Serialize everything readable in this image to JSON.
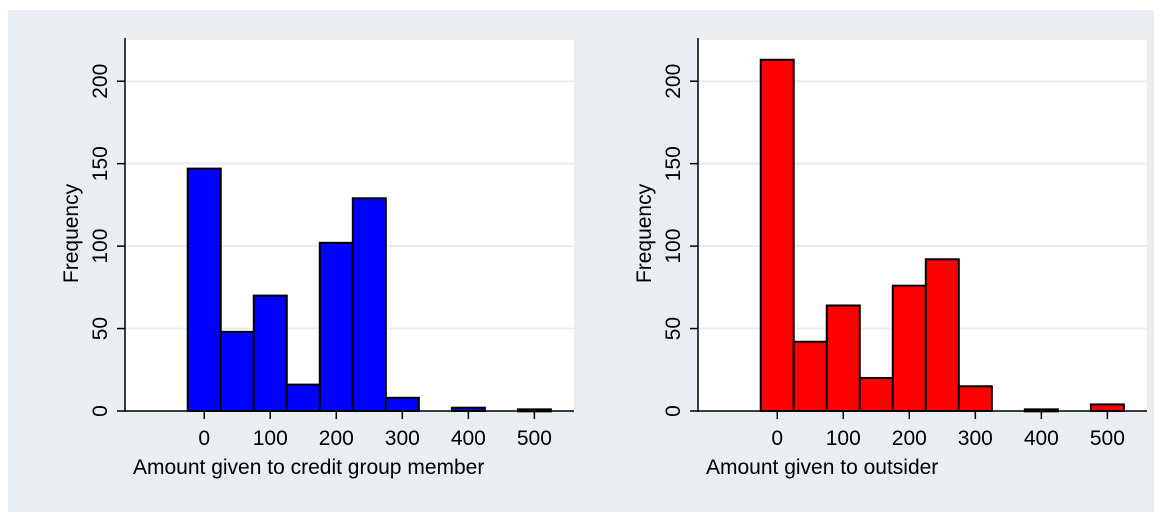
{
  "chart_data": [
    {
      "type": "bar",
      "subtype": "histogram",
      "xlabel": "Amount given to credit group member",
      "ylabel": "Frequency",
      "xticks": [
        0,
        100,
        200,
        300,
        400,
        500
      ],
      "yticks": [
        0,
        50,
        100,
        150,
        200
      ],
      "xlim": [
        -120,
        560
      ],
      "ylim": [
        0,
        225
      ],
      "grid": true,
      "color": "#0000ff",
      "bins": [
        {
          "start": -25,
          "end": 25,
          "value": 147
        },
        {
          "start": 25,
          "end": 75,
          "value": 48
        },
        {
          "start": 75,
          "end": 125,
          "value": 70
        },
        {
          "start": 125,
          "end": 175,
          "value": 16
        },
        {
          "start": 175,
          "end": 225,
          "value": 102
        },
        {
          "start": 225,
          "end": 275,
          "value": 129
        },
        {
          "start": 275,
          "end": 325,
          "value": 8
        },
        {
          "start": 325,
          "end": 375,
          "value": 0
        },
        {
          "start": 375,
          "end": 425,
          "value": 2
        },
        {
          "start": 425,
          "end": 475,
          "value": 0
        },
        {
          "start": 475,
          "end": 525,
          "value": 1
        }
      ]
    },
    {
      "type": "bar",
      "subtype": "histogram",
      "xlabel": "Amount given to outsider",
      "ylabel": "Frequency",
      "xticks": [
        0,
        100,
        200,
        300,
        400,
        500
      ],
      "yticks": [
        0,
        50,
        100,
        150,
        200
      ],
      "xlim": [
        -120,
        560
      ],
      "ylim": [
        0,
        225
      ],
      "grid": true,
      "color": "#ff0000",
      "bins": [
        {
          "start": -25,
          "end": 25,
          "value": 213
        },
        {
          "start": 25,
          "end": 75,
          "value": 42
        },
        {
          "start": 75,
          "end": 125,
          "value": 64
        },
        {
          "start": 125,
          "end": 175,
          "value": 20
        },
        {
          "start": 175,
          "end": 225,
          "value": 76
        },
        {
          "start": 225,
          "end": 275,
          "value": 92
        },
        {
          "start": 275,
          "end": 325,
          "value": 15
        },
        {
          "start": 325,
          "end": 375,
          "value": 0
        },
        {
          "start": 375,
          "end": 425,
          "value": 1
        },
        {
          "start": 425,
          "end": 475,
          "value": 0
        },
        {
          "start": 475,
          "end": 525,
          "value": 4
        }
      ]
    }
  ]
}
